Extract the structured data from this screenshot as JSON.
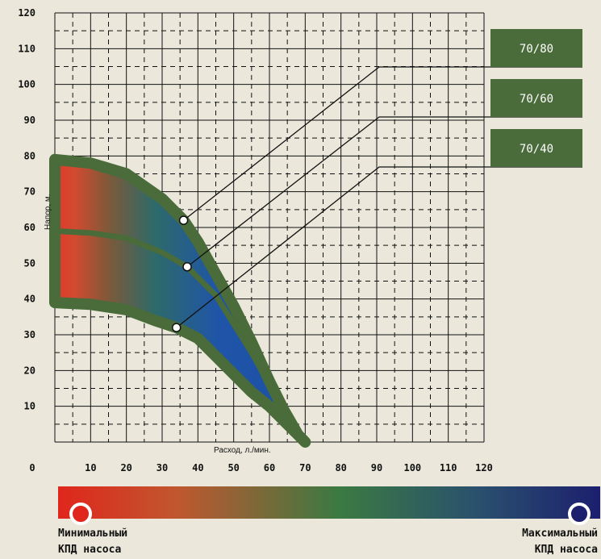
{
  "chart_data": {
    "type": "area",
    "title": "",
    "xlabel": "Расход, л./мин.",
    "ylabel": "Напор, м.",
    "xlim": [
      0,
      120
    ],
    "ylim": [
      0,
      120
    ],
    "x_ticks": [
      "0",
      "10",
      "20",
      "30",
      "40",
      "50",
      "60",
      "70",
      "80",
      "90",
      "100",
      "110",
      "120"
    ],
    "y_ticks": [
      "10",
      "20",
      "30",
      "40",
      "50",
      "60",
      "70",
      "80",
      "90",
      "100",
      "110",
      "120"
    ],
    "grid": true,
    "legend_placement": "top-right",
    "series": [
      {
        "name": "70/80",
        "color": "#4a6b3a",
        "points": [
          [
            0,
            79
          ],
          [
            10,
            78
          ],
          [
            20,
            75
          ],
          [
            30,
            68
          ],
          [
            36,
            62
          ],
          [
            40,
            56
          ],
          [
            45,
            47
          ],
          [
            50,
            38
          ],
          [
            55,
            28
          ],
          [
            60,
            17
          ],
          [
            64,
            9
          ],
          [
            68,
            2
          ],
          [
            70,
            0
          ]
        ]
      },
      {
        "name": "70/60",
        "color": "#4a6b3a",
        "points": [
          [
            0,
            59
          ],
          [
            10,
            58.5
          ],
          [
            20,
            57
          ],
          [
            30,
            53
          ],
          [
            37,
            49
          ],
          [
            40,
            46
          ],
          [
            45,
            41
          ],
          [
            50,
            33
          ],
          [
            55,
            25
          ],
          [
            60,
            16
          ],
          [
            64,
            9
          ],
          [
            68,
            2
          ],
          [
            70,
            0
          ]
        ]
      },
      {
        "name": "70/40",
        "color": "#4a6b3a",
        "points": [
          [
            0,
            39
          ],
          [
            10,
            38.5
          ],
          [
            20,
            37
          ],
          [
            28,
            34
          ],
          [
            34,
            32
          ],
          [
            40,
            29
          ],
          [
            45,
            24
          ],
          [
            50,
            19
          ],
          [
            55,
            14
          ],
          [
            60,
            10
          ],
          [
            64,
            6
          ],
          [
            68,
            2
          ],
          [
            70,
            0
          ]
        ]
      }
    ],
    "markers": [
      {
        "series": "70/80",
        "x": 36,
        "y": 62
      },
      {
        "series": "70/60",
        "x": 37,
        "y": 49
      },
      {
        "series": "70/40",
        "x": 34,
        "y": 32
      }
    ],
    "band_colors": {
      "edge": "#4a6b3a",
      "min": "#e1382b",
      "mid": "#3d7a46",
      "max": "#1d4fa6"
    }
  },
  "efficiency_scale": {
    "colors": [
      "#e0261c",
      "#c4562f",
      "#3a7a42",
      "#2a4f6e",
      "#1c1f6e"
    ],
    "min_label_line1": "Минимальный",
    "min_label_line2": "КПД насоса",
    "max_label_line1": "Максимальный",
    "max_label_line2": "КПД насоса"
  }
}
